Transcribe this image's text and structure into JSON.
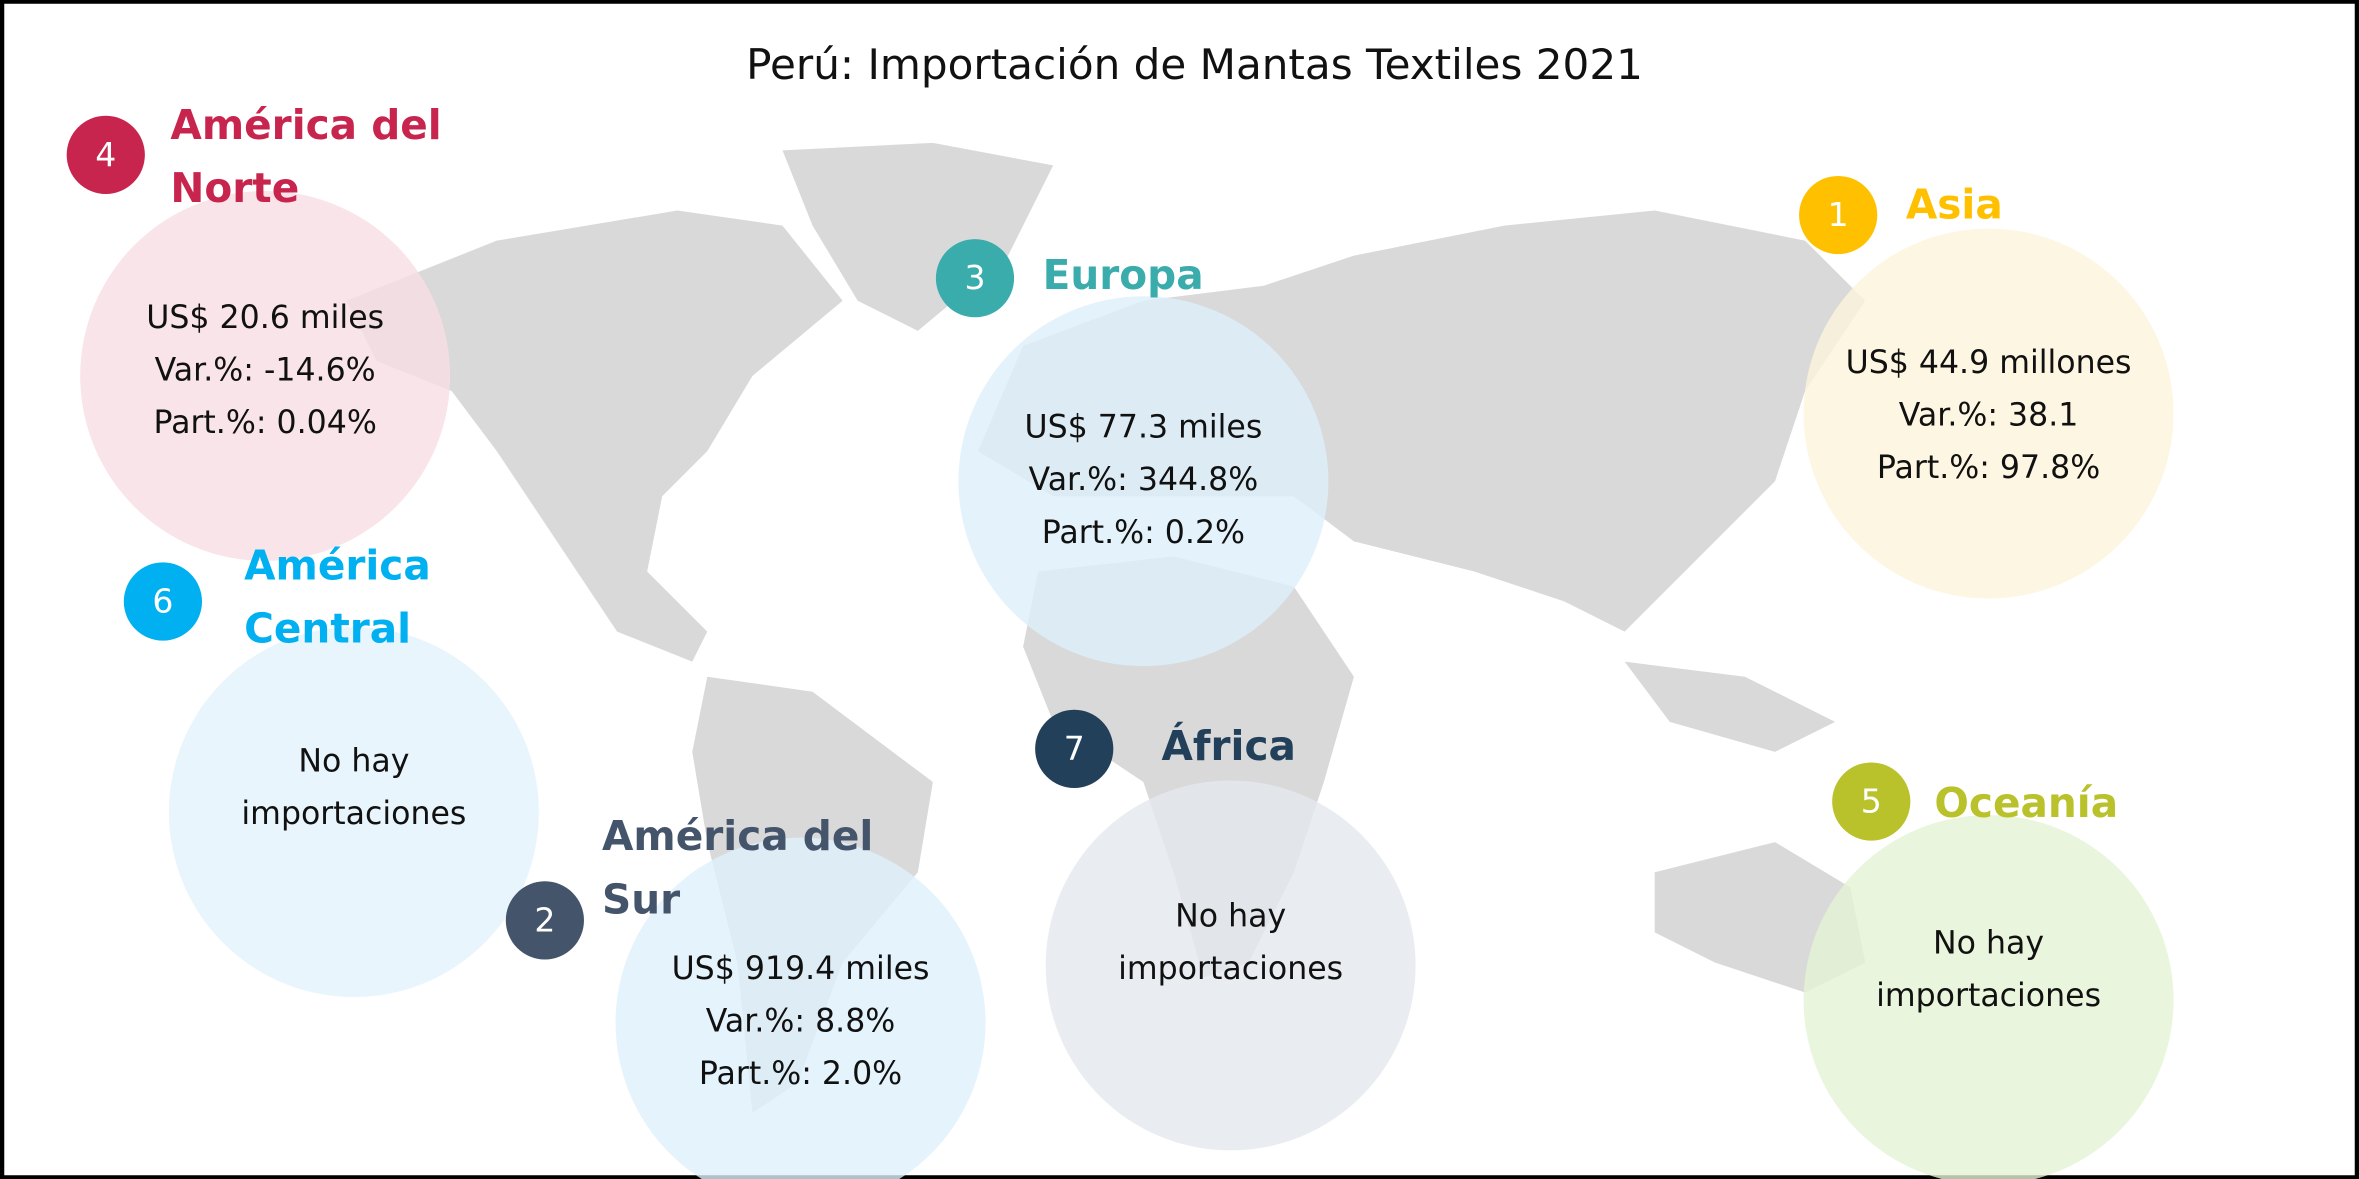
{
  "title": "Perú: Importación de Mantas Textiles 2021",
  "regions": [
    {
      "rank": 4,
      "name": [
        "América del",
        "Norte"
      ],
      "color": "#c8254e",
      "bubble_color": "#f6dde3",
      "lines": [
        "US$ 20.6 miles",
        "Var.%: -14.6%",
        "Part.%: 0.04%"
      ]
    },
    {
      "rank": 6,
      "name": [
        "América",
        "Central"
      ],
      "color": "#00b0f0",
      "bubble_color": "#e2f2fc",
      "lines": [
        "No hay",
        "importaciones"
      ]
    },
    {
      "rank": 2,
      "name": [
        "América del",
        "Sur"
      ],
      "color": "#44546a",
      "bubble_color": "#dff0fb",
      "lines": [
        "US$  919.4 miles",
        "Var.%: 8.8%",
        "Part.%: 2.0%"
      ]
    },
    {
      "rank": 3,
      "name": [
        "Europa"
      ],
      "color": "#3aacac",
      "bubble_color": "#ddf0fa",
      "lines": [
        "US$ 77.3 miles",
        "Var.%: 344.8%",
        "Part.%: 0.2%"
      ]
    },
    {
      "rank": 7,
      "name": [
        "África"
      ],
      "color": "#23405a",
      "bubble_color": "#e4e8ee",
      "lines": [
        "No hay",
        "importaciones"
      ]
    },
    {
      "rank": 1,
      "name": [
        "Asia"
      ],
      "color": "#ffc000",
      "bubble_color": "#fdf4dc",
      "lines": [
        "US$ 44.9 millones",
        "Var.%: 38.1",
        "Part.%: 97.8%"
      ]
    },
    {
      "rank": 5,
      "name": [
        "Oceanía"
      ],
      "color": "#b9c22a",
      "bubble_color": "#e4f2d3",
      "lines": [
        "No hay",
        "importaciones"
      ]
    }
  ]
}
